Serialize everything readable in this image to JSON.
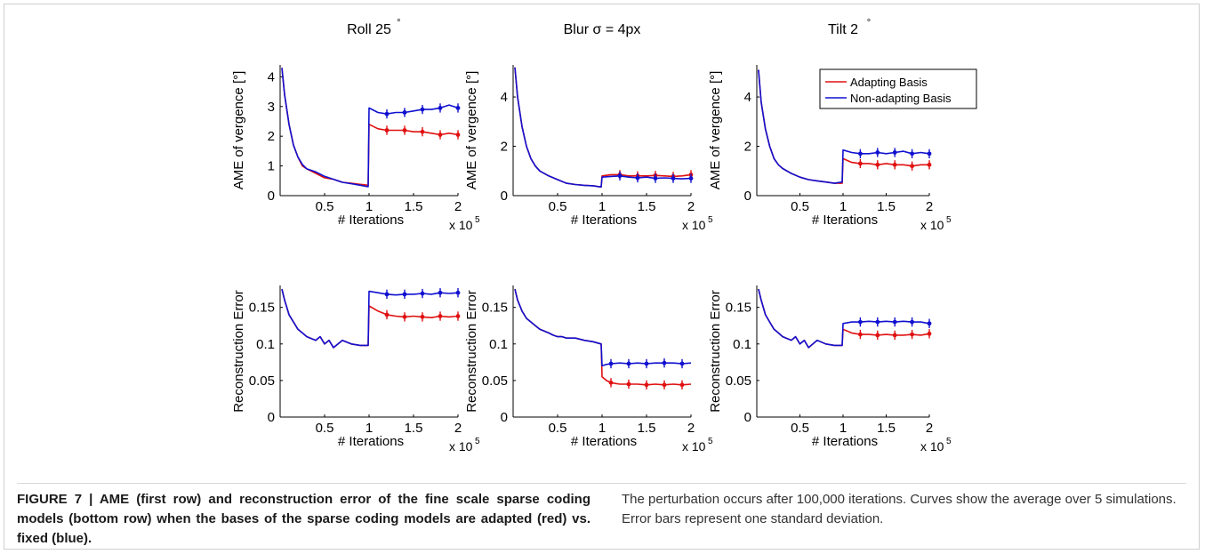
{
  "figure": {
    "caption_bold": "FIGURE 7 | AME (first row) and reconstruction error of the fine scale sparse coding models (bottom row) when the bases of the sparse coding models are adapted (red) vs. fixed (blue).",
    "caption_rest": "The perturbation occurs after 100,000 iterations. Curves show the average over 5 simulations. Error bars represent one standard deviation."
  },
  "legend": [
    "Adapting Basis",
    "Non-adapting Basis"
  ],
  "colors": {
    "adapting": "#e01010",
    "nonadapting": "#1010d0"
  },
  "chart_data": [
    {
      "type": "line",
      "title": "Roll 25°",
      "title_main": "Roll 25",
      "title_sup": "°",
      "xlabel": "# Iterations",
      "xmult": "x 10",
      "xmult_exp": "5",
      "ylabel": "AME of vergence [°]",
      "xlim": [
        0,
        2
      ],
      "ylim": [
        0,
        4.4
      ],
      "xticks": [
        "0.5",
        "1",
        "1.5",
        "2"
      ],
      "yticks": [
        "0",
        "1",
        "2",
        "3",
        "4"
      ],
      "x": [
        0.02,
        0.05,
        0.1,
        0.15,
        0.2,
        0.25,
        0.3,
        0.4,
        0.5,
        0.6,
        0.7,
        0.8,
        0.9,
        0.99,
        1.0,
        1.1,
        1.2,
        1.3,
        1.4,
        1.5,
        1.6,
        1.7,
        1.8,
        1.9,
        2.0
      ],
      "series": [
        {
          "name": "Adapting Basis",
          "values": [
            4.3,
            3.4,
            2.4,
            1.7,
            1.3,
            1.0,
            0.9,
            0.75,
            0.6,
            0.55,
            0.45,
            0.42,
            0.38,
            0.35,
            2.4,
            2.25,
            2.2,
            2.2,
            2.2,
            2.15,
            2.15,
            2.1,
            2.05,
            2.1,
            2.05
          ]
        },
        {
          "name": "Non-adapting Basis",
          "values": [
            4.3,
            3.4,
            2.4,
            1.7,
            1.3,
            1.05,
            0.9,
            0.8,
            0.65,
            0.55,
            0.45,
            0.4,
            0.35,
            0.3,
            2.95,
            2.8,
            2.75,
            2.8,
            2.8,
            2.85,
            2.9,
            2.9,
            2.95,
            3.05,
            2.95
          ]
        }
      ]
    },
    {
      "type": "line",
      "title": "Blur σ = 4px",
      "title_main": "Blur σ = 4px",
      "title_sup": "",
      "xlabel": "# Iterations",
      "xmult": "x 10",
      "xmult_exp": "5",
      "ylabel": "AME of vergence [°]",
      "xlim": [
        0,
        2
      ],
      "ylim": [
        0,
        5.3
      ],
      "xticks": [
        "0.5",
        "1",
        "1.5",
        "2"
      ],
      "yticks": [
        "0",
        "2",
        "4"
      ],
      "x": [
        0.02,
        0.05,
        0.1,
        0.15,
        0.2,
        0.25,
        0.3,
        0.4,
        0.5,
        0.6,
        0.7,
        0.8,
        0.9,
        0.99,
        1.0,
        1.1,
        1.2,
        1.3,
        1.4,
        1.5,
        1.6,
        1.7,
        1.8,
        1.9,
        2.0
      ],
      "series": [
        {
          "name": "Adapting Basis",
          "values": [
            5.2,
            4.0,
            2.8,
            2.0,
            1.5,
            1.2,
            1.0,
            0.8,
            0.65,
            0.5,
            0.45,
            0.42,
            0.4,
            0.35,
            0.8,
            0.85,
            0.85,
            0.8,
            0.8,
            0.8,
            0.82,
            0.8,
            0.78,
            0.8,
            0.85
          ]
        },
        {
          "name": "Non-adapting Basis",
          "values": [
            5.2,
            4.0,
            2.8,
            2.0,
            1.5,
            1.2,
            1.0,
            0.8,
            0.65,
            0.5,
            0.45,
            0.42,
            0.4,
            0.35,
            0.75,
            0.78,
            0.8,
            0.75,
            0.72,
            0.75,
            0.7,
            0.72,
            0.7,
            0.68,
            0.7
          ]
        }
      ]
    },
    {
      "type": "line",
      "title": "Tilt 2°",
      "title_main": "Tilt 2",
      "title_sup": "°",
      "xlabel": "# Iterations",
      "xmult": "x 10",
      "xmult_exp": "5",
      "ylabel": "AME of vergence [°]",
      "xlim": [
        0,
        2
      ],
      "ylim": [
        0,
        5.3
      ],
      "xticks": [
        "0.5",
        "1",
        "1.5",
        "2"
      ],
      "yticks": [
        "0",
        "2",
        "4"
      ],
      "x": [
        0.02,
        0.05,
        0.1,
        0.15,
        0.2,
        0.25,
        0.3,
        0.4,
        0.5,
        0.6,
        0.7,
        0.8,
        0.9,
        0.99,
        1.0,
        1.1,
        1.2,
        1.3,
        1.4,
        1.5,
        1.6,
        1.7,
        1.8,
        1.9,
        2.0
      ],
      "series": [
        {
          "name": "Adapting Basis",
          "values": [
            5.1,
            3.8,
            2.7,
            2.0,
            1.5,
            1.25,
            1.1,
            0.9,
            0.75,
            0.65,
            0.6,
            0.55,
            0.5,
            0.5,
            1.5,
            1.35,
            1.3,
            1.3,
            1.25,
            1.3,
            1.25,
            1.25,
            1.2,
            1.25,
            1.25
          ]
        },
        {
          "name": "Non-adapting Basis",
          "values": [
            5.1,
            3.8,
            2.7,
            2.0,
            1.5,
            1.25,
            1.1,
            0.9,
            0.75,
            0.65,
            0.6,
            0.55,
            0.5,
            0.55,
            1.85,
            1.75,
            1.7,
            1.7,
            1.75,
            1.7,
            1.75,
            1.8,
            1.7,
            1.75,
            1.7
          ]
        }
      ]
    },
    {
      "type": "line",
      "title": "",
      "title_main": "",
      "title_sup": "",
      "xlabel": "# Iterations",
      "xmult": "x 10",
      "xmult_exp": "5",
      "ylabel": "Reconstruction Error",
      "xlim": [
        0,
        2
      ],
      "ylim": [
        0,
        0.18
      ],
      "xticks": [
        "0.5",
        "1",
        "1.5",
        "2"
      ],
      "yticks": [
        "0",
        "0.05",
        "0.1",
        "0.15"
      ],
      "x": [
        0.02,
        0.05,
        0.1,
        0.15,
        0.2,
        0.25,
        0.3,
        0.4,
        0.45,
        0.5,
        0.55,
        0.6,
        0.7,
        0.8,
        0.9,
        0.99,
        1.0,
        1.1,
        1.2,
        1.3,
        1.4,
        1.5,
        1.6,
        1.7,
        1.8,
        1.9,
        2.0
      ],
      "series": [
        {
          "name": "Adapting Basis",
          "values": [
            0.175,
            0.16,
            0.14,
            0.13,
            0.12,
            0.115,
            0.11,
            0.105,
            0.11,
            0.1,
            0.105,
            0.095,
            0.105,
            0.1,
            0.098,
            0.098,
            0.152,
            0.145,
            0.14,
            0.138,
            0.137,
            0.138,
            0.137,
            0.136,
            0.138,
            0.137,
            0.138
          ]
        },
        {
          "name": "Non-adapting Basis",
          "values": [
            0.175,
            0.16,
            0.14,
            0.13,
            0.12,
            0.115,
            0.11,
            0.105,
            0.11,
            0.1,
            0.105,
            0.095,
            0.105,
            0.1,
            0.098,
            0.098,
            0.172,
            0.17,
            0.168,
            0.167,
            0.168,
            0.168,
            0.169,
            0.168,
            0.17,
            0.169,
            0.17
          ]
        }
      ]
    },
    {
      "type": "line",
      "title": "",
      "title_main": "",
      "title_sup": "",
      "xlabel": "# Iterations",
      "xmult": "x 10",
      "xmult_exp": "5",
      "ylabel": "Reconstruction Error",
      "xlim": [
        0,
        2
      ],
      "ylim": [
        0,
        0.18
      ],
      "xticks": [
        "0.5",
        "1",
        "1.5",
        "2"
      ],
      "yticks": [
        "0",
        "0.05",
        "0.1",
        "0.15"
      ],
      "x": [
        0.02,
        0.05,
        0.1,
        0.15,
        0.2,
        0.25,
        0.3,
        0.4,
        0.45,
        0.5,
        0.55,
        0.6,
        0.7,
        0.8,
        0.9,
        0.99,
        1.0,
        1.05,
        1.1,
        1.2,
        1.3,
        1.4,
        1.5,
        1.6,
        1.7,
        1.8,
        1.9,
        2.0
      ],
      "series": [
        {
          "name": "Adapting Basis",
          "values": [
            0.175,
            0.16,
            0.145,
            0.135,
            0.13,
            0.125,
            0.12,
            0.115,
            0.112,
            0.11,
            0.11,
            0.108,
            0.108,
            0.105,
            0.103,
            0.1,
            0.055,
            0.05,
            0.047,
            0.045,
            0.045,
            0.045,
            0.044,
            0.045,
            0.044,
            0.045,
            0.044,
            0.045
          ]
        },
        {
          "name": "Non-adapting Basis",
          "values": [
            0.175,
            0.16,
            0.145,
            0.135,
            0.13,
            0.125,
            0.12,
            0.115,
            0.112,
            0.11,
            0.11,
            0.108,
            0.108,
            0.105,
            0.103,
            0.1,
            0.07,
            0.072,
            0.073,
            0.074,
            0.073,
            0.074,
            0.073,
            0.074,
            0.074,
            0.074,
            0.073,
            0.074
          ]
        }
      ]
    },
    {
      "type": "line",
      "title": "",
      "title_main": "",
      "title_sup": "",
      "xlabel": "# Iterations",
      "xmult": "x 10",
      "xmult_exp": "5",
      "ylabel": "Reconstruction Error",
      "xlim": [
        0,
        2
      ],
      "ylim": [
        0,
        0.18
      ],
      "xticks": [
        "0.5",
        "1",
        "1.5",
        "2"
      ],
      "yticks": [
        "0",
        "0.05",
        "0.1",
        "0.15"
      ],
      "x": [
        0.02,
        0.05,
        0.1,
        0.15,
        0.2,
        0.25,
        0.3,
        0.4,
        0.45,
        0.5,
        0.55,
        0.6,
        0.7,
        0.8,
        0.9,
        0.99,
        1.0,
        1.1,
        1.2,
        1.3,
        1.4,
        1.5,
        1.6,
        1.7,
        1.8,
        1.9,
        2.0
      ],
      "series": [
        {
          "name": "Adapting Basis",
          "values": [
            0.175,
            0.16,
            0.14,
            0.13,
            0.12,
            0.115,
            0.11,
            0.105,
            0.11,
            0.1,
            0.105,
            0.095,
            0.105,
            0.1,
            0.098,
            0.098,
            0.12,
            0.115,
            0.113,
            0.113,
            0.112,
            0.113,
            0.112,
            0.112,
            0.113,
            0.112,
            0.114
          ]
        },
        {
          "name": "Non-adapting Basis",
          "values": [
            0.175,
            0.16,
            0.14,
            0.13,
            0.12,
            0.115,
            0.11,
            0.105,
            0.11,
            0.1,
            0.105,
            0.095,
            0.105,
            0.1,
            0.098,
            0.098,
            0.128,
            0.13,
            0.13,
            0.131,
            0.13,
            0.131,
            0.13,
            0.131,
            0.13,
            0.13,
            0.128
          ]
        }
      ]
    }
  ]
}
